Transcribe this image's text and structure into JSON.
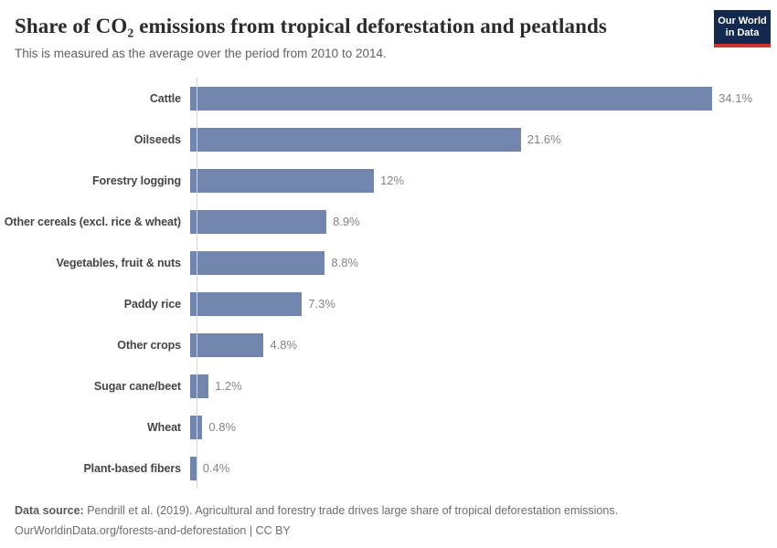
{
  "header": {
    "title": "Share of CO₂ emissions from tropical deforestation and peatlands",
    "subtitle": "This is measured as the average over the period from 2010 to 2014."
  },
  "logo": {
    "line1": "Our World",
    "line2": "in Data",
    "bg_color": "#132a4e",
    "accent_color": "#cf3430"
  },
  "chart_data": {
    "type": "bar",
    "orientation": "horizontal",
    "categories": [
      "Cattle",
      "Oilseeds",
      "Forestry logging",
      "Other cereals (excl. rice & wheat)",
      "Vegetables, fruit & nuts",
      "Paddy rice",
      "Other crops",
      "Sugar cane/beet",
      "Wheat",
      "Plant-based fibers"
    ],
    "values": [
      34.1,
      21.6,
      12,
      8.9,
      8.8,
      7.3,
      4.8,
      1.2,
      0.8,
      0.4
    ],
    "value_labels": [
      "34.1%",
      "21.6%",
      "12%",
      "8.9%",
      "8.8%",
      "7.3%",
      "4.8%",
      "1.2%",
      "0.8%",
      "0.4%"
    ],
    "unit": "%",
    "bar_color": "#7185ad",
    "xlim": [
      0,
      36.5
    ],
    "grid": false,
    "legend": "none",
    "sorted": "descending"
  },
  "footer": {
    "data_source_label": "Data source:",
    "data_source_text": "Pendrill et al. (2019). Agricultural and forestry trade drives large share of tropical deforestation emissions.",
    "line2": "OurWorldinData.org/forests-and-deforestation | CC BY"
  }
}
